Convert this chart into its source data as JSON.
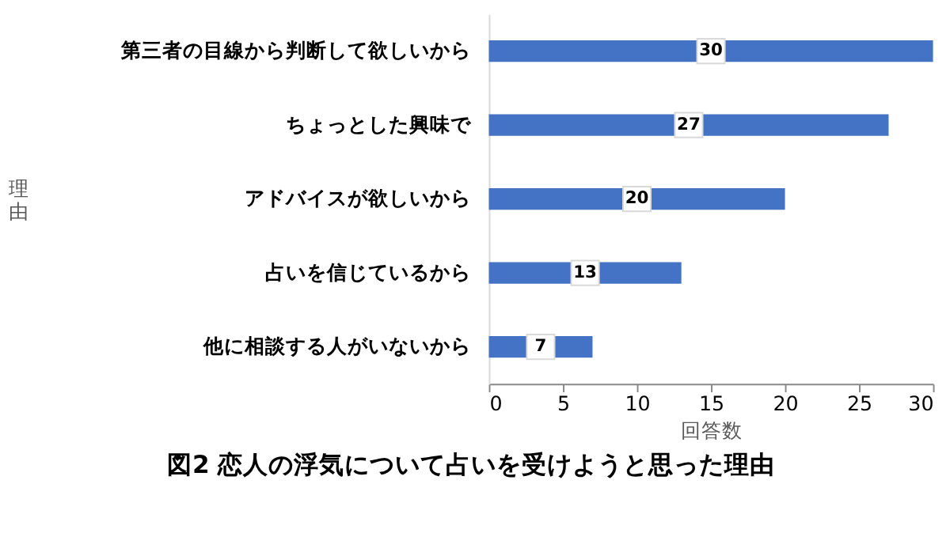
{
  "chart_data": {
    "type": "bar",
    "orientation": "horizontal",
    "title": "図2 恋人の浮気について占いを受けようと思った理由",
    "xlabel": "回答数",
    "ylabel": "理由",
    "categories": [
      "第三者の目線から判断して欲しいから",
      "ちょっとした興味で",
      "アドバイスが欲しいから",
      "占いを信じているから",
      "他に相談する人がいないから"
    ],
    "values": [
      30,
      27,
      20,
      13,
      7
    ],
    "color": "#4472c4",
    "data_labels": true,
    "xlim": [
      0,
      30
    ],
    "xticks": [
      0,
      5,
      10,
      15,
      20,
      25,
      30
    ],
    "grid": false
  }
}
